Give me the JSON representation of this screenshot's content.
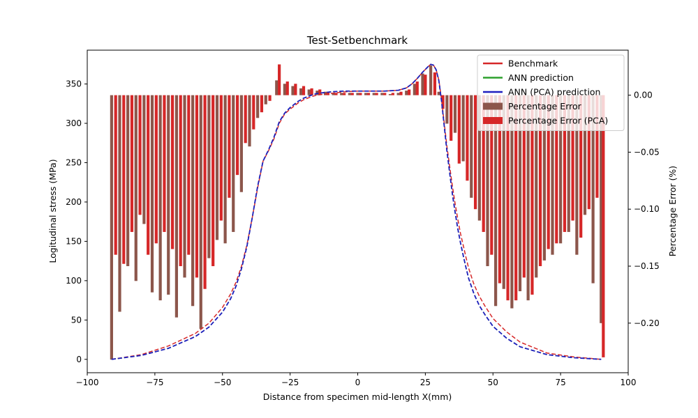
{
  "chart_data": {
    "type": "line",
    "title": "Test-Setbenchmark",
    "xlabel": "Distance from specimen mid-length X(mm)",
    "ylabel": "Logitudinal stress (MPa)",
    "y2label": "Percentage Error (%)",
    "xlim": [
      -100,
      100
    ],
    "ylim": [
      -17,
      393
    ],
    "y2lim": [
      -0.2435,
      0.0395
    ],
    "xticks": [
      "−100",
      "−75",
      "−50",
      "−25",
      "0",
      "25",
      "50",
      "75",
      "100"
    ],
    "xtick_values": [
      -100,
      -75,
      -50,
      -25,
      0,
      25,
      50,
      75,
      100
    ],
    "yticks": [
      "0",
      "50",
      "100",
      "150",
      "200",
      "250",
      "300",
      "350"
    ],
    "ytick_values": [
      0,
      50,
      100,
      150,
      200,
      250,
      300,
      350
    ],
    "y2ticks": [
      "0.00",
      "−0.05",
      "−0.10",
      "−0.15",
      "−0.20"
    ],
    "y2tick_values": [
      0.0,
      -0.05,
      -0.1,
      -0.15,
      -0.2
    ],
    "legend_position": "top-right",
    "legend": [
      {
        "label": "Benchmark",
        "color": "#d62728",
        "style": "solid"
      },
      {
        "label": "ANN prediction",
        "color": "#2ca02c",
        "style": "solid"
      },
      {
        "label": "ANN (PCA) prediction",
        "color": "#1f1fbf",
        "style": "solid"
      },
      {
        "label": "Percentage Error",
        "color": "#8c564b",
        "style": "bar"
      },
      {
        "label": "Percentage Error (PCA)",
        "color": "#d62728",
        "style": "bar"
      }
    ],
    "series": [
      {
        "name": "Benchmark",
        "color": "#d62728",
        "dash": "dashed",
        "x": [
          -91,
          -80,
          -70,
          -60,
          -55,
          -50,
          -47,
          -45,
          -43,
          -41,
          -39,
          -37,
          -35,
          -33,
          -31,
          -29,
          -27,
          -25,
          -22,
          -20,
          -17,
          -15,
          -10,
          -5,
          0,
          5,
          10,
          15,
          18,
          20,
          22,
          24,
          26,
          27,
          28,
          29,
          30,
          31,
          32,
          33,
          34,
          35,
          36,
          37,
          38,
          39,
          40,
          41,
          43,
          45,
          47,
          50,
          55,
          60,
          70,
          80,
          90
        ],
        "y": [
          0,
          6,
          17,
          33,
          46,
          66,
          83,
          98,
          118,
          145,
          180,
          218,
          252,
          265,
          280,
          300,
          312,
          318,
          326,
          330,
          334,
          336,
          338,
          340,
          341,
          341,
          341,
          342,
          345,
          350,
          357,
          365,
          372,
          375,
          374,
          368,
          355,
          330,
          300,
          270,
          245,
          220,
          198,
          178,
          160,
          145,
          130,
          116,
          95,
          80,
          68,
          52,
          35,
          22,
          8,
          3,
          0
        ]
      },
      {
        "name": "ANN prediction",
        "color": "#2ca02c",
        "dash": "dashed",
        "x": [
          -91,
          -80,
          -70,
          -60,
          -55,
          -50,
          -47,
          -45,
          -43,
          -41,
          -39,
          -37,
          -35,
          -33,
          -31,
          -29,
          -27,
          -25,
          -22,
          -20,
          -17,
          -15,
          -10,
          -5,
          0,
          5,
          10,
          15,
          18,
          20,
          22,
          24,
          26,
          27,
          28,
          29,
          30,
          31,
          32,
          33,
          34,
          35,
          36,
          37,
          38,
          39,
          40,
          41,
          43,
          45,
          47,
          50,
          55,
          60,
          70,
          80,
          90
        ],
        "y": [
          0,
          5,
          14,
          29,
          41,
          60,
          77,
          93,
          115,
          143,
          180,
          220,
          252,
          266,
          282,
          302,
          313,
          320,
          328,
          332,
          336,
          338,
          340,
          341,
          341,
          341,
          341,
          342,
          345,
          350,
          357,
          365,
          372,
          375,
          374,
          368,
          354,
          328,
          296,
          264,
          237,
          210,
          187,
          166,
          148,
          132,
          117,
          103,
          83,
          68,
          57,
          42,
          27,
          16,
          6,
          2,
          0
        ]
      },
      {
        "name": "ANN (PCA) prediction",
        "color": "#1f1fbf",
        "dash": "dashed",
        "x": [
          -91,
          -80,
          -70,
          -60,
          -55,
          -50,
          -47,
          -45,
          -43,
          -41,
          -39,
          -37,
          -35,
          -33,
          -31,
          -29,
          -27,
          -25,
          -22,
          -20,
          -17,
          -15,
          -10,
          -5,
          0,
          5,
          10,
          15,
          18,
          20,
          22,
          24,
          26,
          27,
          28,
          29,
          30,
          31,
          32,
          33,
          34,
          35,
          36,
          37,
          38,
          39,
          40,
          41,
          43,
          45,
          47,
          50,
          55,
          60,
          70,
          80,
          90
        ],
        "y": [
          0,
          5,
          14,
          29,
          41,
          60,
          77,
          93,
          115,
          143,
          180,
          220,
          252,
          266,
          282,
          302,
          313,
          320,
          328,
          332,
          336,
          338,
          340,
          341,
          341,
          341,
          341,
          342,
          345,
          350,
          357,
          365,
          372,
          375,
          374,
          368,
          354,
          328,
          296,
          264,
          237,
          210,
          187,
          166,
          148,
          132,
          117,
          103,
          83,
          68,
          57,
          42,
          27,
          16,
          6,
          2,
          0
        ]
      }
    ],
    "bars_error": {
      "name": "Percentage Error",
      "axis": "right",
      "color": "#8c564b",
      "x": [
        -91,
        -88,
        -85,
        -82,
        -79,
        -76,
        -73,
        -70,
        -67,
        -64,
        -61,
        -58,
        -55,
        -52,
        -49,
        -46,
        -43,
        -40,
        -37,
        -34,
        -30,
        -27,
        -24,
        -21,
        -18,
        -15,
        -12,
        -9,
        -6,
        -3,
        0,
        3,
        6,
        9,
        12,
        15,
        18,
        21,
        24,
        27,
        30,
        33,
        36,
        39,
        42,
        45,
        48,
        51,
        54,
        57,
        60,
        63,
        66,
        69,
        72,
        75,
        78,
        81,
        84,
        87,
        90
      ],
      "y": [
        -0.232,
        -0.19,
        -0.15,
        -0.163,
        -0.113,
        -0.173,
        -0.18,
        -0.175,
        -0.195,
        -0.16,
        -0.185,
        -0.205,
        -0.143,
        -0.127,
        -0.13,
        -0.12,
        -0.085,
        -0.045,
        -0.02,
        -0.008,
        0.013,
        0.01,
        0.008,
        0.006,
        0.005,
        0.004,
        0.003,
        0.002,
        0.002,
        0.002,
        0.002,
        0.002,
        0.002,
        0.002,
        0.001,
        0.002,
        0.004,
        0.01,
        0.019,
        0.026,
        0.003,
        -0.025,
        -0.033,
        -0.058,
        -0.09,
        -0.11,
        -0.15,
        -0.185,
        -0.17,
        -0.187,
        -0.172,
        -0.18,
        -0.16,
        -0.145,
        -0.14,
        -0.13,
        -0.12,
        -0.14,
        -0.105,
        -0.165,
        -0.2
      ]
    },
    "bars_error_pca": {
      "name": "Percentage Error (PCA)",
      "axis": "right",
      "color": "#d62728",
      "x": [
        -89.5,
        -86.5,
        -83.5,
        -80.5,
        -77.5,
        -74.5,
        -71.5,
        -68.5,
        -65.5,
        -62.5,
        -59.5,
        -56.5,
        -53.5,
        -50.5,
        -47.5,
        -44.5,
        -41.5,
        -38.5,
        -35.5,
        -32.5,
        -29,
        -26,
        -23,
        -20,
        -17,
        -14,
        -11,
        -8,
        -5,
        -2,
        1,
        4,
        7,
        10,
        13,
        16,
        19,
        22,
        25,
        28.5,
        31.5,
        34.5,
        37.5,
        40.5,
        43.5,
        46.5,
        49.5,
        52.5,
        55.5,
        58.5,
        61.5,
        64.5,
        67.5,
        70.5,
        73.5,
        76.5,
        79.5,
        82.5,
        85.5,
        88.5,
        90.8
      ],
      "y": [
        -0.14,
        -0.148,
        -0.12,
        -0.105,
        -0.14,
        -0.13,
        -0.12,
        -0.135,
        -0.15,
        -0.14,
        -0.16,
        -0.17,
        -0.15,
        -0.11,
        -0.09,
        -0.07,
        -0.042,
        -0.03,
        -0.015,
        -0.005,
        0.027,
        0.012,
        0.01,
        0.008,
        0.006,
        0.005,
        0.003,
        0.002,
        0.002,
        0.002,
        0.002,
        0.002,
        0.002,
        0.002,
        0.002,
        0.003,
        0.005,
        0.012,
        0.018,
        0.02,
        -0.012,
        -0.04,
        -0.06,
        -0.075,
        -0.1,
        -0.12,
        -0.14,
        -0.165,
        -0.18,
        -0.18,
        -0.16,
        -0.175,
        -0.15,
        -0.135,
        -0.13,
        -0.12,
        -0.11,
        -0.125,
        -0.1,
        -0.09,
        -0.23
      ]
    }
  }
}
